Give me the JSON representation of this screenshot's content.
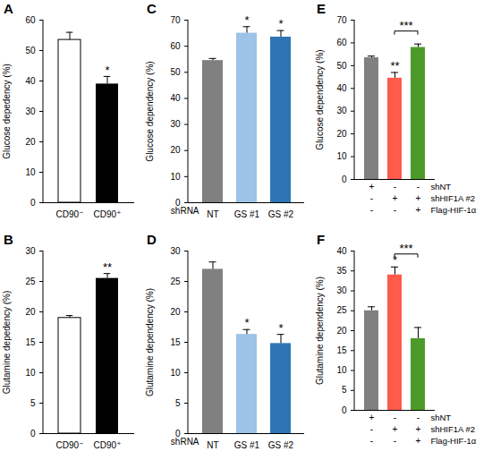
{
  "chart_data": [
    {
      "type": "bar",
      "title": "A",
      "ylabel": "Glucose depedency (%)",
      "categories": [
        "CD90⁻",
        "CD90⁺"
      ],
      "values": [
        53.5,
        39
      ],
      "errors": [
        2.5,
        2.5
      ],
      "colors": [
        "#ffffff",
        "#000000"
      ],
      "significance": [
        null,
        "*"
      ],
      "ylim": [
        0,
        60
      ],
      "yticks": [
        0,
        10,
        20,
        30,
        40,
        50,
        60
      ]
    },
    {
      "type": "bar",
      "title": "B",
      "ylabel": "Glutamine depedency (%)",
      "categories": [
        "CD90⁻",
        "CD90⁺"
      ],
      "values": [
        19,
        25.5
      ],
      "errors": [
        0.4,
        0.8
      ],
      "colors": [
        "#ffffff",
        "#000000"
      ],
      "significance": [
        null,
        "**"
      ],
      "ylim": [
        0,
        30
      ],
      "yticks": [
        0,
        5,
        10,
        15,
        20,
        25,
        30
      ]
    },
    {
      "type": "bar",
      "title": "C",
      "ylabel": "Glucose dependency (%)",
      "xlabel": "shRNA",
      "categories": [
        "NT",
        "GS #1",
        "GS #2"
      ],
      "values": [
        54.5,
        65,
        63.5
      ],
      "errors": [
        0.8,
        2.5,
        2.5
      ],
      "colors": [
        "#808080",
        "#9dc3e6",
        "#2e75b6"
      ],
      "significance": [
        null,
        "*",
        "*"
      ],
      "ylim": [
        0,
        70
      ],
      "yticks": [
        0,
        10,
        20,
        30,
        40,
        50,
        60,
        70
      ]
    },
    {
      "type": "bar",
      "title": "D",
      "ylabel": "Glutamine dependency (%)",
      "xlabel": "shRNA",
      "categories": [
        "NT",
        "GS #1",
        "GS #2"
      ],
      "values": [
        27,
        16.3,
        14.8
      ],
      "errors": [
        1.2,
        0.8,
        1.5
      ],
      "colors": [
        "#808080",
        "#9dc3e6",
        "#2e75b6"
      ],
      "significance": [
        null,
        "*",
        "*"
      ],
      "ylim": [
        0,
        30
      ],
      "yticks": [
        0,
        5,
        10,
        15,
        20,
        25,
        30
      ]
    },
    {
      "type": "bar",
      "title": "E",
      "ylabel": "Glucose dependency (%)",
      "categories": [
        null,
        null,
        null
      ],
      "values": [
        53.5,
        44.5,
        58
      ],
      "errors": [
        0.7,
        2.5,
        1.5
      ],
      "colors": [
        "#808080",
        "#ff5a4a",
        "#4c9a2a"
      ],
      "significance": [
        null,
        "**",
        null
      ],
      "comparisons": [
        {
          "from": 1,
          "to": 2,
          "label": "***"
        }
      ],
      "conditions": [
        {
          "label": "shNT",
          "values": [
            "+",
            "-",
            "-"
          ]
        },
        {
          "label": "shHIF1A #2",
          "values": [
            "-",
            "+",
            "+"
          ]
        },
        {
          "label": "Flag-HIF-1α",
          "values": [
            "-",
            "-",
            "+"
          ]
        }
      ],
      "ylim": [
        0,
        70
      ],
      "yticks": [
        0,
        10,
        20,
        30,
        40,
        50,
        60,
        70
      ]
    },
    {
      "type": "bar",
      "title": "F",
      "ylabel": "Glutamine dependency (%)",
      "categories": [
        null,
        null,
        null
      ],
      "values": [
        25,
        34,
        18
      ],
      "errors": [
        1,
        2,
        2.8
      ],
      "colors": [
        "#808080",
        "#ff5a4a",
        "#4c9a2a"
      ],
      "significance": [
        null,
        "*",
        null
      ],
      "comparisons": [
        {
          "from": 1,
          "to": 2,
          "label": "***"
        }
      ],
      "conditions": [
        {
          "label": "shNT",
          "values": [
            "+",
            "-",
            "-"
          ]
        },
        {
          "label": "shHIF1A #2",
          "values": [
            "-",
            "+",
            "+"
          ]
        },
        {
          "label": "Flag-HIF-1α",
          "values": [
            "-",
            "-",
            "+"
          ]
        }
      ],
      "ylim": [
        0,
        40
      ],
      "yticks": [
        0,
        5,
        10,
        15,
        20,
        25,
        30,
        35,
        40
      ]
    }
  ]
}
